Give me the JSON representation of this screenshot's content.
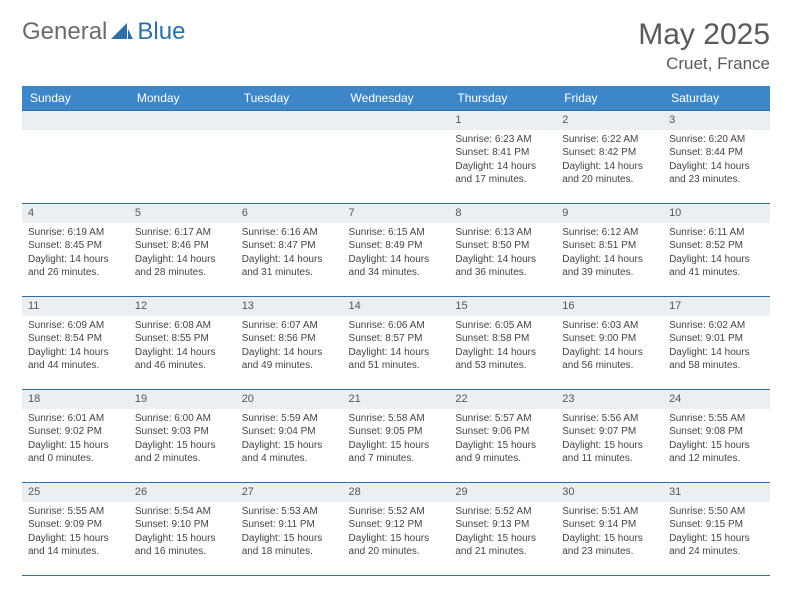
{
  "brand": {
    "general": "General",
    "blue": "Blue"
  },
  "title": "May 2025",
  "location": "Cruet, France",
  "header_bg": "#3d87c9",
  "border_color": "#2f6fa8",
  "daynum_bg": "#eceff2",
  "weekdays": [
    "Sunday",
    "Monday",
    "Tuesday",
    "Wednesday",
    "Thursday",
    "Friday",
    "Saturday"
  ],
  "weeks": [
    [
      {
        "n": "",
        "sr": "",
        "ss": "",
        "dl": ""
      },
      {
        "n": "",
        "sr": "",
        "ss": "",
        "dl": ""
      },
      {
        "n": "",
        "sr": "",
        "ss": "",
        "dl": ""
      },
      {
        "n": "",
        "sr": "",
        "ss": "",
        "dl": ""
      },
      {
        "n": "1",
        "sr": "6:23 AM",
        "ss": "8:41 PM",
        "dl": "14 hours and 17 minutes."
      },
      {
        "n": "2",
        "sr": "6:22 AM",
        "ss": "8:42 PM",
        "dl": "14 hours and 20 minutes."
      },
      {
        "n": "3",
        "sr": "6:20 AM",
        "ss": "8:44 PM",
        "dl": "14 hours and 23 minutes."
      }
    ],
    [
      {
        "n": "4",
        "sr": "6:19 AM",
        "ss": "8:45 PM",
        "dl": "14 hours and 26 minutes."
      },
      {
        "n": "5",
        "sr": "6:17 AM",
        "ss": "8:46 PM",
        "dl": "14 hours and 28 minutes."
      },
      {
        "n": "6",
        "sr": "6:16 AM",
        "ss": "8:47 PM",
        "dl": "14 hours and 31 minutes."
      },
      {
        "n": "7",
        "sr": "6:15 AM",
        "ss": "8:49 PM",
        "dl": "14 hours and 34 minutes."
      },
      {
        "n": "8",
        "sr": "6:13 AM",
        "ss": "8:50 PM",
        "dl": "14 hours and 36 minutes."
      },
      {
        "n": "9",
        "sr": "6:12 AM",
        "ss": "8:51 PM",
        "dl": "14 hours and 39 minutes."
      },
      {
        "n": "10",
        "sr": "6:11 AM",
        "ss": "8:52 PM",
        "dl": "14 hours and 41 minutes."
      }
    ],
    [
      {
        "n": "11",
        "sr": "6:09 AM",
        "ss": "8:54 PM",
        "dl": "14 hours and 44 minutes."
      },
      {
        "n": "12",
        "sr": "6:08 AM",
        "ss": "8:55 PM",
        "dl": "14 hours and 46 minutes."
      },
      {
        "n": "13",
        "sr": "6:07 AM",
        "ss": "8:56 PM",
        "dl": "14 hours and 49 minutes."
      },
      {
        "n": "14",
        "sr": "6:06 AM",
        "ss": "8:57 PM",
        "dl": "14 hours and 51 minutes."
      },
      {
        "n": "15",
        "sr": "6:05 AM",
        "ss": "8:58 PM",
        "dl": "14 hours and 53 minutes."
      },
      {
        "n": "16",
        "sr": "6:03 AM",
        "ss": "9:00 PM",
        "dl": "14 hours and 56 minutes."
      },
      {
        "n": "17",
        "sr": "6:02 AM",
        "ss": "9:01 PM",
        "dl": "14 hours and 58 minutes."
      }
    ],
    [
      {
        "n": "18",
        "sr": "6:01 AM",
        "ss": "9:02 PM",
        "dl": "15 hours and 0 minutes."
      },
      {
        "n": "19",
        "sr": "6:00 AM",
        "ss": "9:03 PM",
        "dl": "15 hours and 2 minutes."
      },
      {
        "n": "20",
        "sr": "5:59 AM",
        "ss": "9:04 PM",
        "dl": "15 hours and 4 minutes."
      },
      {
        "n": "21",
        "sr": "5:58 AM",
        "ss": "9:05 PM",
        "dl": "15 hours and 7 minutes."
      },
      {
        "n": "22",
        "sr": "5:57 AM",
        "ss": "9:06 PM",
        "dl": "15 hours and 9 minutes."
      },
      {
        "n": "23",
        "sr": "5:56 AM",
        "ss": "9:07 PM",
        "dl": "15 hours and 11 minutes."
      },
      {
        "n": "24",
        "sr": "5:55 AM",
        "ss": "9:08 PM",
        "dl": "15 hours and 12 minutes."
      }
    ],
    [
      {
        "n": "25",
        "sr": "5:55 AM",
        "ss": "9:09 PM",
        "dl": "15 hours and 14 minutes."
      },
      {
        "n": "26",
        "sr": "5:54 AM",
        "ss": "9:10 PM",
        "dl": "15 hours and 16 minutes."
      },
      {
        "n": "27",
        "sr": "5:53 AM",
        "ss": "9:11 PM",
        "dl": "15 hours and 18 minutes."
      },
      {
        "n": "28",
        "sr": "5:52 AM",
        "ss": "9:12 PM",
        "dl": "15 hours and 20 minutes."
      },
      {
        "n": "29",
        "sr": "5:52 AM",
        "ss": "9:13 PM",
        "dl": "15 hours and 21 minutes."
      },
      {
        "n": "30",
        "sr": "5:51 AM",
        "ss": "9:14 PM",
        "dl": "15 hours and 23 minutes."
      },
      {
        "n": "31",
        "sr": "5:50 AM",
        "ss": "9:15 PM",
        "dl": "15 hours and 24 minutes."
      }
    ]
  ],
  "labels": {
    "sunrise": "Sunrise:",
    "sunset": "Sunset:",
    "daylight": "Daylight:"
  }
}
